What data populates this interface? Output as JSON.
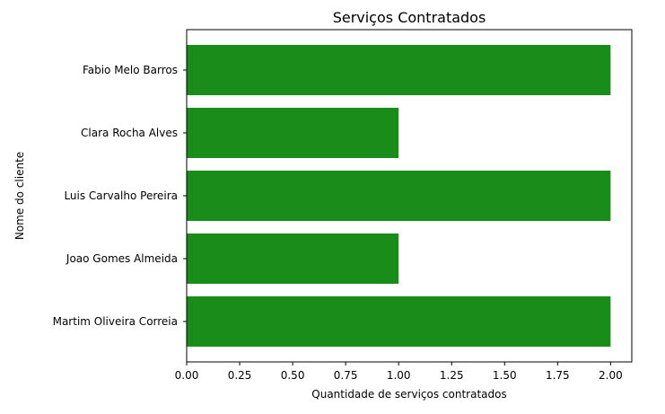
{
  "chart_data": {
    "type": "bar",
    "orientation": "horizontal",
    "title": "Serviços Contratados",
    "xlabel": "Quantidade de serviços contratados",
    "ylabel": "Nome do cliente",
    "categories": [
      "Martim Oliveira Correia",
      "Joao Gomes Almeida",
      "Luis Carvalho Pereira",
      "Clara Rocha Alves",
      "Fabio Melo Barros"
    ],
    "values": [
      2,
      1,
      2,
      1,
      2
    ],
    "xlim": [
      0,
      2.1
    ],
    "xticks": [
      "0.00",
      "0.25",
      "0.50",
      "0.75",
      "1.00",
      "1.25",
      "1.50",
      "1.75",
      "2.00"
    ],
    "bar_color": "#1a8c1a",
    "grid": false,
    "legend": false
  }
}
